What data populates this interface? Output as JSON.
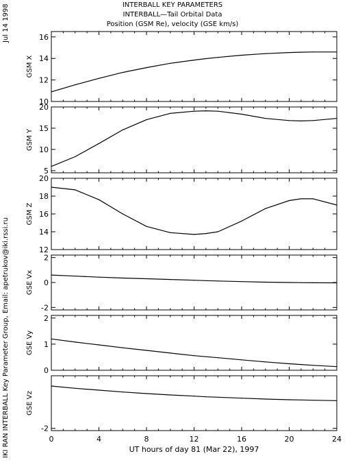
{
  "header": {
    "title_lines": [
      "INTERBALL KEY PARAMETERS",
      "INTERBALL—Tail Orbital Data",
      "Position (GSM Re), velocity (GSE km/s)"
    ],
    "date": "Jul 14 1998",
    "credit": "IKI RAN INTERBALL Key Parameter Group, Email: apetrukov@iki.rssi.ru"
  },
  "chart_data": {
    "type": "line",
    "xlabel": "UT hours of day  81 (Mar 22), 1997",
    "xlim": [
      0,
      24
    ],
    "xticks": [
      0,
      4,
      8,
      12,
      16,
      20,
      24
    ],
    "x": [
      0,
      2,
      4,
      6,
      8,
      10,
      12,
      13,
      14,
      16,
      18,
      20,
      21,
      22,
      24
    ],
    "panels": [
      {
        "ylabel": "GSM X",
        "ylim": [
          10,
          16.5
        ],
        "yticks": [
          10,
          12,
          14,
          16
        ],
        "values": [
          10.9,
          11.55,
          12.15,
          12.7,
          13.15,
          13.55,
          13.85,
          13.98,
          14.1,
          14.3,
          14.45,
          14.55,
          14.58,
          14.6,
          14.6
        ]
      },
      {
        "ylabel": "GSM Y",
        "ylim": [
          4.5,
          20
        ],
        "yticks": [
          5,
          10,
          15,
          20
        ],
        "values": [
          6.0,
          8.3,
          11.4,
          14.6,
          17.0,
          18.5,
          19.0,
          19.1,
          19.0,
          18.3,
          17.3,
          16.8,
          16.7,
          16.8,
          17.3
        ]
      },
      {
        "ylabel": "GSM Z",
        "ylim": [
          12,
          20
        ],
        "yticks": [
          12,
          14,
          16,
          18,
          20
        ],
        "values": [
          19.0,
          18.7,
          17.6,
          16.0,
          14.6,
          13.9,
          13.7,
          13.8,
          14.0,
          15.2,
          16.6,
          17.5,
          17.7,
          17.7,
          17.0
        ]
      },
      {
        "ylabel": "GSE Vx",
        "ylim": [
          -2.2,
          2.2
        ],
        "yticks": [
          -2,
          0,
          2
        ],
        "values": [
          0.6,
          0.51,
          0.43,
          0.36,
          0.3,
          0.24,
          0.18,
          0.15,
          0.12,
          0.07,
          0.03,
          0.0,
          -0.01,
          -0.02,
          -0.03
        ]
      },
      {
        "ylabel": "GSE Vy",
        "ylim": [
          0,
          2.1
        ],
        "yticks": [
          0,
          1,
          2
        ],
        "values": [
          1.2,
          1.08,
          0.97,
          0.86,
          0.76,
          0.66,
          0.56,
          0.52,
          0.48,
          0.4,
          0.32,
          0.25,
          0.22,
          0.19,
          0.14
        ]
      },
      {
        "ylabel": "GSE Vz",
        "ylim": [
          -2.1,
          0.3
        ],
        "yticks": [
          -2
        ],
        "values": [
          -0.15,
          -0.25,
          -0.33,
          -0.41,
          -0.48,
          -0.54,
          -0.59,
          -0.62,
          -0.64,
          -0.68,
          -0.72,
          -0.75,
          -0.76,
          -0.77,
          -0.79
        ]
      }
    ]
  }
}
